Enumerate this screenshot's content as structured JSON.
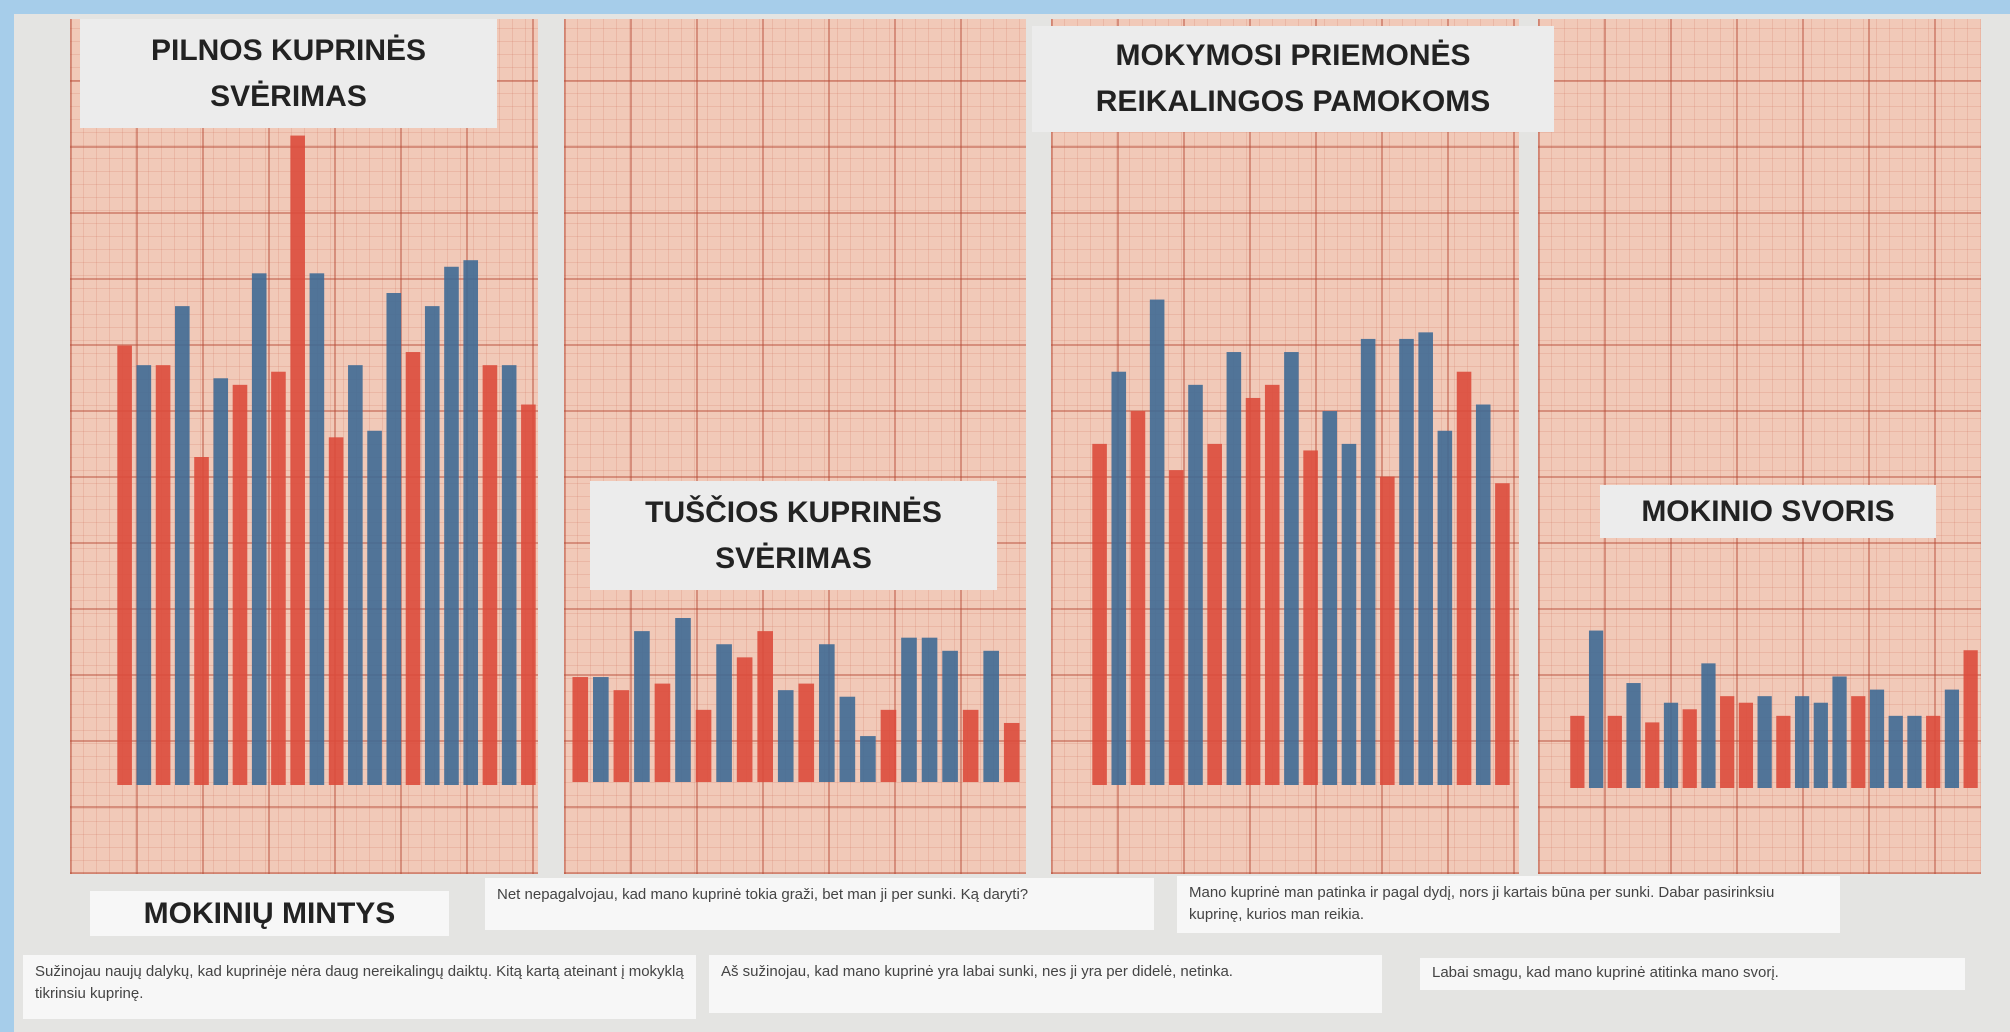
{
  "chart_data": [
    {
      "type": "bar",
      "title": "PILNOS KUPRINĖS SVĖRIMAS",
      "values": [
        6.7,
        6.4,
        6.4,
        7.3,
        5.0,
        6.2,
        6.1,
        7.8,
        6.3,
        9.9,
        7.8,
        5.3,
        6.4,
        5.4,
        7.5,
        6.6,
        7.3,
        7.9,
        8.0,
        6.4,
        6.4,
        5.8
      ],
      "colors": [
        "#dc4b3c",
        "#3f6a95",
        "#dc4b3c",
        "#3f6a95",
        "#dc4b3c",
        "#3f6a95",
        "#dc4b3c",
        "#3f6a95",
        "#dc4b3c",
        "#dc4b3c",
        "#3f6a95",
        "#dc4b3c",
        "#3f6a95",
        "#3f6a95",
        "#3f6a95",
        "#dc4b3c",
        "#3f6a95",
        "#3f6a95",
        "#3f6a95",
        "#dc4b3c",
        "#3f6a95",
        "#dc4b3c"
      ],
      "ylim": [
        0,
        10
      ]
    },
    {
      "type": "bar",
      "title": "TUŠČIOS KUPRINĖS SVĖRIMAS",
      "values": [
        1.6,
        1.6,
        1.4,
        2.3,
        1.5,
        2.5,
        1.1,
        2.1,
        1.9,
        2.3,
        1.4,
        1.5,
        2.1,
        1.3,
        0.7,
        1.1,
        2.2,
        2.2,
        2.0,
        1.1,
        2.0,
        0.9
      ],
      "colors": [
        "#dc4b3c",
        "#3f6a95",
        "#dc4b3c",
        "#3f6a95",
        "#dc4b3c",
        "#3f6a95",
        "#dc4b3c",
        "#3f6a95",
        "#dc4b3c",
        "#dc4b3c",
        "#3f6a95",
        "#dc4b3c",
        "#3f6a95",
        "#3f6a95",
        "#3f6a95",
        "#dc4b3c",
        "#3f6a95",
        "#3f6a95",
        "#3f6a95",
        "#dc4b3c",
        "#3f6a95",
        "#dc4b3c"
      ],
      "ylim": [
        0,
        10
      ]
    },
    {
      "type": "bar",
      "title": "MOKYMOSI PRIEMONĖS REIKALINGOS PAMOKOMS",
      "values": [
        5.2,
        6.3,
        5.7,
        7.4,
        4.8,
        6.1,
        5.2,
        6.6,
        5.9,
        6.1,
        6.6,
        5.1,
        5.7,
        5.2,
        6.8,
        4.7,
        6.8,
        6.9,
        5.4,
        6.3,
        5.8,
        4.6
      ],
      "colors": [
        "#dc4b3c",
        "#3f6a95",
        "#dc4b3c",
        "#3f6a95",
        "#dc4b3c",
        "#3f6a95",
        "#dc4b3c",
        "#3f6a95",
        "#dc4b3c",
        "#dc4b3c",
        "#3f6a95",
        "#dc4b3c",
        "#3f6a95",
        "#3f6a95",
        "#3f6a95",
        "#dc4b3c",
        "#3f6a95",
        "#3f6a95",
        "#3f6a95",
        "#dc4b3c",
        "#3f6a95",
        "#dc4b3c"
      ],
      "ylim": [
        0,
        10
      ]
    },
    {
      "type": "bar",
      "title": "MOKINIO SVORIS",
      "values": [
        1.1,
        2.4,
        1.1,
        1.6,
        1.0,
        1.3,
        1.2,
        1.9,
        1.4,
        1.3,
        1.4,
        1.1,
        1.4,
        1.3,
        1.7,
        1.4,
        1.5,
        1.1,
        1.1,
        1.1,
        1.5,
        2.1
      ],
      "colors": [
        "#dc4b3c",
        "#3f6a95",
        "#dc4b3c",
        "#3f6a95",
        "#dc4b3c",
        "#3f6a95",
        "#dc4b3c",
        "#3f6a95",
        "#dc4b3c",
        "#dc4b3c",
        "#3f6a95",
        "#dc4b3c",
        "#3f6a95",
        "#3f6a95",
        "#3f6a95",
        "#dc4b3c",
        "#3f6a95",
        "#3f6a95",
        "#3f6a95",
        "#dc4b3c",
        "#3f6a95",
        "#dc4b3c"
      ],
      "ylim": [
        0,
        10
      ]
    }
  ],
  "notes": {
    "heading": "MOKINIŲ MINTYS",
    "items": [
      "Net nepagalvojau, kad mano kuprinė tokia graži, bet man ji per sunki. Ką daryti?",
      "Mano kuprinė man patinka ir pagal dydį, nors ji kartais būna per sunki. Dabar pasirinksiu kuprinę, kurios man reikia.",
      "Sužinojau naujų dalykų, kad kuprinėje nėra daug nereikalingų daiktų. Kitą kartą ateinant į mokyklą tikrinsiu kuprinę.",
      "Aš sužinojau, kad mano kuprinė yra labai sunki, nes ji yra per didelė, netinka.",
      "Labai smagu, kad mano kuprinė atitinka mano svorį."
    ]
  }
}
